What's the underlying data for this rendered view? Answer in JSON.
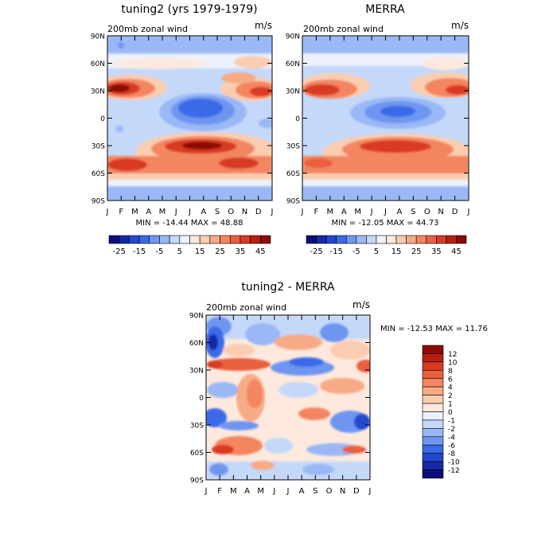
{
  "chart_data": [
    {
      "type": "heatmap",
      "title": "tuning2 (yrs 1979-1979)",
      "subtitle": "200mb zonal wind",
      "units": "m/s",
      "x_ticks": [
        "J",
        "F",
        "M",
        "A",
        "M",
        "J",
        "J",
        "A",
        "S",
        "O",
        "N",
        "D",
        "J"
      ],
      "y_ticks": [
        "90N",
        "60N",
        "30N",
        "0",
        "30S",
        "60S",
        "90S"
      ],
      "stats": "MIN = -14.44 MAX =  48.88",
      "colorbar_labels": [
        "-25",
        "-15",
        "-5",
        "5",
        "15",
        "25",
        "35",
        "45"
      ],
      "colorbar_colors": [
        "#0a0f78",
        "#1628a8",
        "#2248d0",
        "#3a6ae8",
        "#6e96f0",
        "#9ab8f6",
        "#c4d8fa",
        "#ecf1fd",
        "#fde9dd",
        "#fbcdb0",
        "#f7aa86",
        "#f38560",
        "#ea5f3c",
        "#d83a22",
        "#b81e10",
        "#8c0a05"
      ],
      "value_range": [
        -14.44,
        48.88
      ]
    },
    {
      "type": "heatmap",
      "title": "MERRA",
      "subtitle": "200mb zonal wind",
      "units": "m/s",
      "x_ticks": [
        "J",
        "F",
        "M",
        "A",
        "M",
        "J",
        "J",
        "A",
        "S",
        "O",
        "N",
        "D",
        "J"
      ],
      "y_ticks": [
        "90N",
        "60N",
        "30N",
        "0",
        "30S",
        "60S",
        "90S"
      ],
      "stats": "MIN = -12.05 MAX =  44.73",
      "colorbar_labels": [
        "-25",
        "-15",
        "-5",
        "5",
        "15",
        "25",
        "35",
        "45"
      ],
      "colorbar_colors": [
        "#0a0f78",
        "#1628a8",
        "#2248d0",
        "#3a6ae8",
        "#6e96f0",
        "#9ab8f6",
        "#c4d8fa",
        "#ecf1fd",
        "#fde9dd",
        "#fbcdb0",
        "#f7aa86",
        "#f38560",
        "#ea5f3c",
        "#d83a22",
        "#b81e10",
        "#8c0a05"
      ],
      "value_range": [
        -12.05,
        44.73
      ]
    },
    {
      "type": "heatmap",
      "title": "tuning2 - MERRA",
      "subtitle": "200mb zonal wind",
      "units": "m/s",
      "x_ticks": [
        "J",
        "F",
        "M",
        "A",
        "M",
        "J",
        "J",
        "A",
        "S",
        "O",
        "N",
        "D",
        "J"
      ],
      "y_ticks": [
        "90N",
        "60N",
        "30N",
        "0",
        "30S",
        "60S",
        "90S"
      ],
      "stats": "MIN = -12.53 MAX =  11.76",
      "colorbar_labels": [
        "12",
        "10",
        "8",
        "6",
        "4",
        "2",
        "1",
        "0",
        "-1",
        "-2",
        "-4",
        "-6",
        "-8",
        "-10",
        "-12"
      ],
      "colorbar_colors": [
        "#8c0a05",
        "#b81e10",
        "#d83a22",
        "#ea5f3c",
        "#f38560",
        "#f7aa86",
        "#fbcdb0",
        "#fde9dd",
        "#ecf1fd",
        "#c4d8fa",
        "#9ab8f6",
        "#6e96f0",
        "#3a6ae8",
        "#2248d0",
        "#1628a8",
        "#0a0f78"
      ],
      "value_range": [
        -12.53,
        11.76
      ]
    }
  ]
}
